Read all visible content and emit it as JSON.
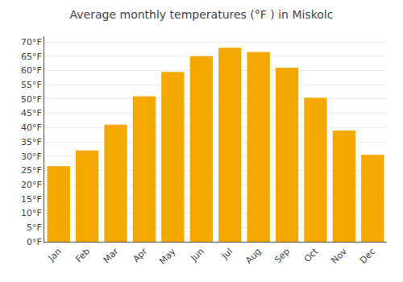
{
  "chart_data": {
    "type": "bar",
    "title": "Average monthly temperatures (°F ) in Miskolc",
    "categories": [
      "Jan",
      "Feb",
      "Mar",
      "Apr",
      "May",
      "Jun",
      "Jul",
      "Aug",
      "Sep",
      "Oct",
      "Nov",
      "Dec"
    ],
    "values": [
      26.5,
      32.0,
      41.0,
      51.0,
      59.5,
      65.0,
      68.0,
      66.5,
      61.0,
      50.5,
      39.0,
      30.5
    ],
    "color": "#F5A800",
    "ylim": [
      0,
      72
    ],
    "yticks": [
      {
        "value": 0,
        "label": "0°F"
      },
      {
        "value": 5,
        "label": "5°F"
      },
      {
        "value": 10,
        "label": "10°F"
      },
      {
        "value": 15,
        "label": "15°F"
      },
      {
        "value": 20,
        "label": "20°F"
      },
      {
        "value": 25,
        "label": "25°F"
      },
      {
        "value": 30,
        "label": "30°F"
      },
      {
        "value": 35,
        "label": "35°F"
      },
      {
        "value": 40,
        "label": "40°F"
      },
      {
        "value": 45,
        "label": "45°F"
      },
      {
        "value": 50,
        "label": "50°F"
      },
      {
        "value": 55,
        "label": "55°F"
      },
      {
        "value": 60,
        "label": "60°F"
      },
      {
        "value": 65,
        "label": "65°F"
      },
      {
        "value": 70,
        "label": "70°F"
      }
    ],
    "grid": true
  }
}
